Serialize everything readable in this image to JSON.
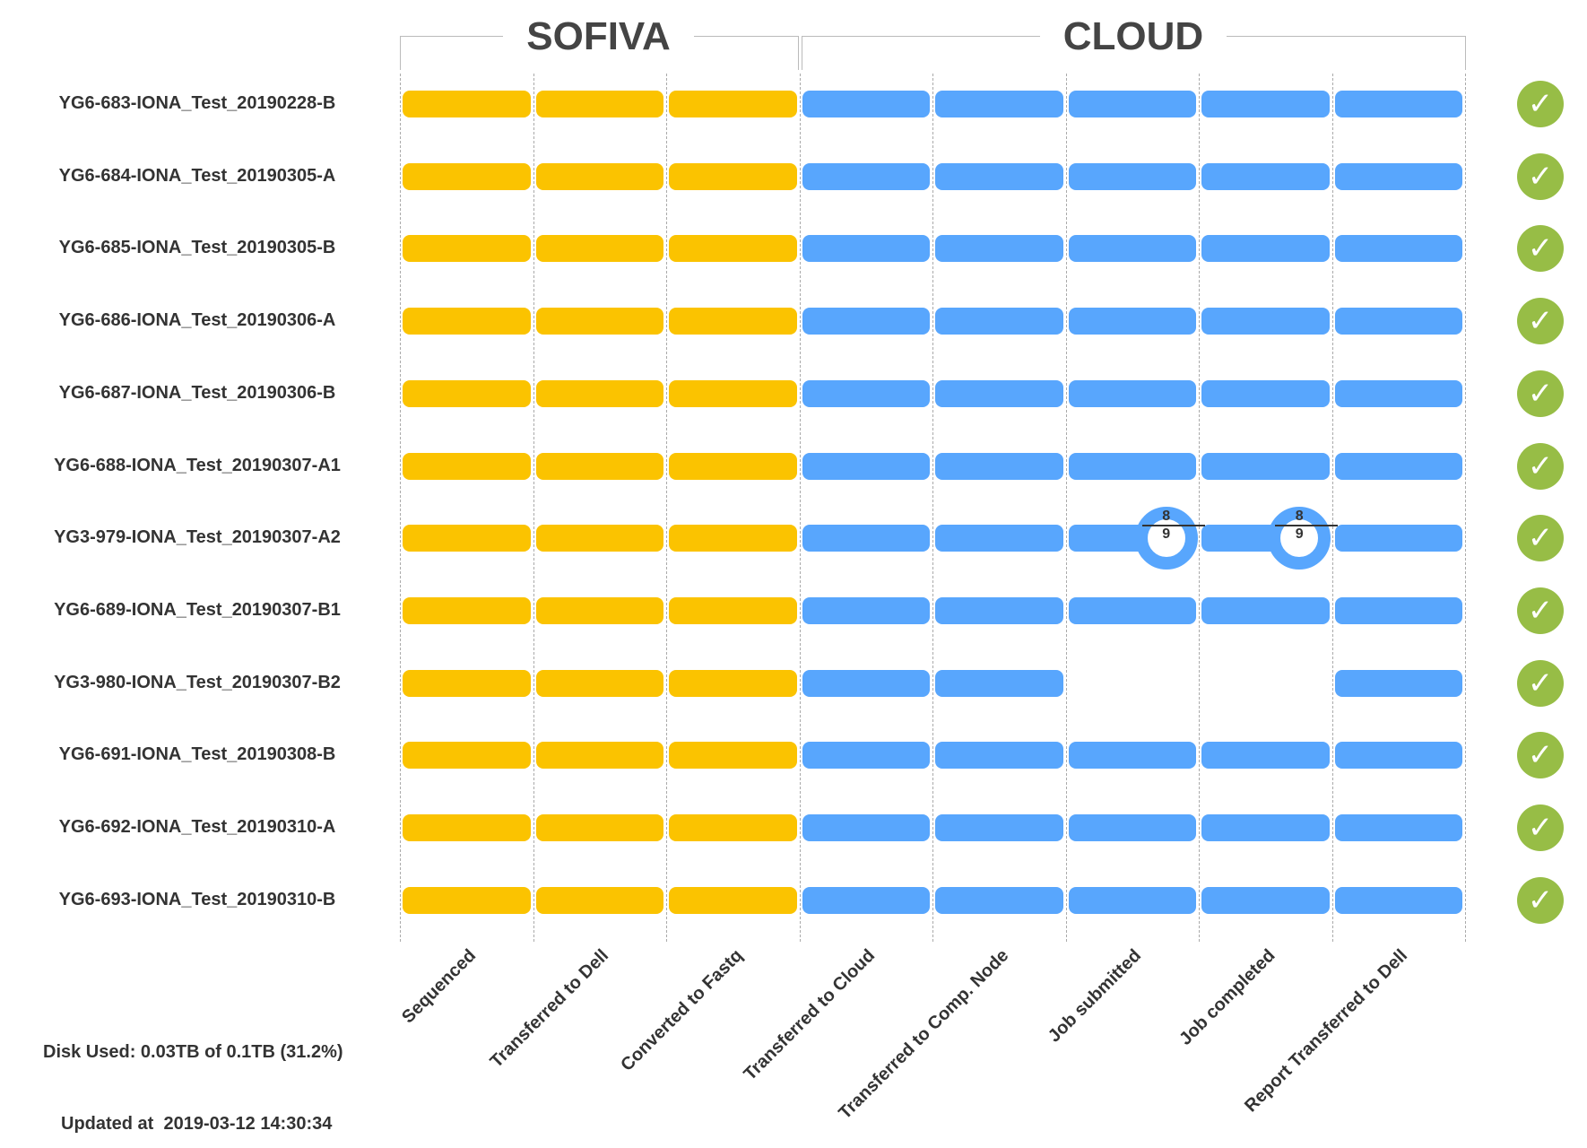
{
  "groups": [
    {
      "title": "SOFIVA",
      "color": "#fbc300",
      "steps": [
        0,
        1,
        2
      ]
    },
    {
      "title": "CLOUD",
      "color": "#58a6fd",
      "steps": [
        3,
        4,
        5,
        6,
        7
      ]
    }
  ],
  "steps": [
    "Sequenced",
    "Transferred to Dell",
    "Converted to Fastq",
    "Transferred to Cloud",
    "Transferred to Comp. Node",
    "Job submitted",
    "Job completed",
    "Report Transferred to Dell"
  ],
  "status_colors": {
    "done": "#97bd46"
  },
  "samples": [
    {
      "name": "YG6-683-IONA_Test_20190228-B",
      "completed": [
        0,
        1,
        2,
        3,
        4,
        5,
        6,
        7
      ],
      "status": "done",
      "status_icon": "check-icon"
    },
    {
      "name": "YG6-684-IONA_Test_20190305-A",
      "completed": [
        0,
        1,
        2,
        3,
        4,
        5,
        6,
        7
      ],
      "status": "done",
      "status_icon": "check-icon"
    },
    {
      "name": "YG6-685-IONA_Test_20190305-B",
      "completed": [
        0,
        1,
        2,
        3,
        4,
        5,
        6,
        7
      ],
      "status": "done",
      "status_icon": "check-icon"
    },
    {
      "name": "YG6-686-IONA_Test_20190306-A",
      "completed": [
        0,
        1,
        2,
        3,
        4,
        5,
        6,
        7
      ],
      "status": "done",
      "status_icon": "check-icon"
    },
    {
      "name": "YG6-687-IONA_Test_20190306-B",
      "completed": [
        0,
        1,
        2,
        3,
        4,
        5,
        6,
        7
      ],
      "status": "done",
      "status_icon": "check-icon"
    },
    {
      "name": "YG6-688-IONA_Test_20190307-A1",
      "completed": [
        0,
        1,
        2,
        3,
        4,
        5,
        6,
        7
      ],
      "status": "done",
      "status_icon": "check-icon"
    },
    {
      "name": "YG3-979-IONA_Test_20190307-A2",
      "completed": [
        0,
        1,
        2,
        3,
        4,
        5,
        6,
        7
      ],
      "status": "done",
      "status_icon": "check-icon",
      "fractions": [
        {
          "step": 5,
          "num": "8",
          "den": "9"
        },
        {
          "step": 6,
          "num": "8",
          "den": "9"
        }
      ]
    },
    {
      "name": "YG6-689-IONA_Test_20190307-B1",
      "completed": [
        0,
        1,
        2,
        3,
        4,
        5,
        6,
        7
      ],
      "status": "done",
      "status_icon": "check-icon"
    },
    {
      "name": "YG3-980-IONA_Test_20190307-B2",
      "completed": [
        0,
        1,
        2,
        3,
        4,
        7
      ],
      "status": "done",
      "status_icon": "check-icon"
    },
    {
      "name": "YG6-691-IONA_Test_20190308-B",
      "completed": [
        0,
        1,
        2,
        3,
        4,
        5,
        6,
        7
      ],
      "status": "done",
      "status_icon": "check-icon"
    },
    {
      "name": "YG6-692-IONA_Test_20190310-A",
      "completed": [
        0,
        1,
        2,
        3,
        4,
        5,
        6,
        7
      ],
      "status": "done",
      "status_icon": "check-icon"
    },
    {
      "name": "YG6-693-IONA_Test_20190310-B",
      "completed": [
        0,
        1,
        2,
        3,
        4,
        5,
        6,
        7
      ],
      "status": "done",
      "status_icon": "check-icon"
    }
  ],
  "footer": {
    "disk_used": "Disk Used: 0.03TB of 0.1TB (31.2%)",
    "updated": "Updated at  2019-03-12 14:30:34"
  }
}
